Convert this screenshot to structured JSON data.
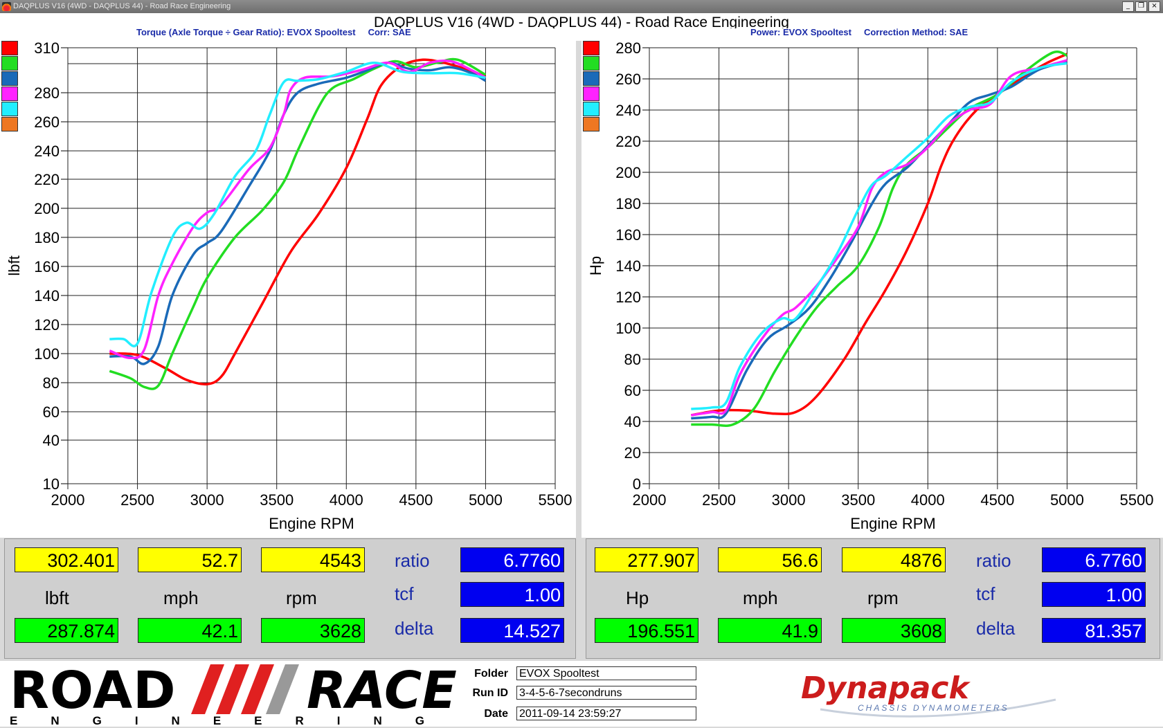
{
  "window": {
    "title": "DAQPLUS V16 (4WD - DAQPLUS 44) - Road Race Engineering",
    "minimize": "_",
    "restore": "❐",
    "close": "×"
  },
  "header": {
    "title": "DAQPLUS V16 (4WD - DAQPLUS 44) - Road Race Engineering",
    "torque_sub": "Torque (Axle Torque ÷ Gear Ratio): EVOX Spooltest     Corr: SAE",
    "power_sub": "Power: EVOX Spooltest     Correction Method: SAE"
  },
  "colors": {
    "run1": "#ff0000",
    "run2": "#22dd22",
    "run3": "#1a6ab8",
    "run4": "#ff22ff",
    "run5": "#22eeff",
    "run6": "#ee7722"
  },
  "chart_data": [
    {
      "type": "line",
      "title": "",
      "xlabel": "Engine RPM",
      "ylabel": "lbft",
      "xlim": [
        2000,
        5500
      ],
      "xticks": [
        2000,
        2500,
        3000,
        3500,
        4000,
        4500,
        5000,
        5500
      ],
      "yticks": [
        10,
        40,
        60,
        80,
        100,
        120,
        140,
        160,
        180,
        200,
        220,
        240,
        260,
        280,
        310
      ],
      "series": [
        {
          "color": "#ff0000",
          "points": [
            [
              2300,
              100
            ],
            [
              2500,
              99
            ],
            [
              2700,
              90
            ],
            [
              2850,
              82
            ],
            [
              3000,
              79
            ],
            [
              3100,
              84
            ],
            [
              3200,
              100
            ],
            [
              3400,
              135
            ],
            [
              3600,
              170
            ],
            [
              3800,
              196
            ],
            [
              4000,
              228
            ],
            [
              4150,
              262
            ],
            [
              4250,
              285
            ],
            [
              4400,
              298
            ],
            [
              4550,
              302
            ],
            [
              4700,
              300
            ],
            [
              4850,
              296
            ],
            [
              5000,
              291
            ]
          ]
        },
        {
          "color": "#22dd22",
          "points": [
            [
              2300,
              88
            ],
            [
              2450,
              83
            ],
            [
              2550,
              77
            ],
            [
              2650,
              78
            ],
            [
              2750,
              100
            ],
            [
              2900,
              132
            ],
            [
              3000,
              152
            ],
            [
              3200,
              180
            ],
            [
              3400,
              199
            ],
            [
              3550,
              218
            ],
            [
              3650,
              240
            ],
            [
              3800,
              270
            ],
            [
              3900,
              283
            ],
            [
              4050,
              289
            ],
            [
              4200,
              296
            ],
            [
              4350,
              301
            ],
            [
              4500,
              297
            ],
            [
              4650,
              300
            ],
            [
              4800,
              302
            ],
            [
              5000,
              292
            ]
          ]
        },
        {
          "color": "#1a6ab8",
          "points": [
            [
              2300,
              98
            ],
            [
              2450,
              98
            ],
            [
              2550,
              93
            ],
            [
              2650,
              105
            ],
            [
              2750,
              140
            ],
            [
              2900,
              168
            ],
            [
              3000,
              176
            ],
            [
              3100,
              184
            ],
            [
              3300,
              215
            ],
            [
              3450,
              240
            ],
            [
              3550,
              265
            ],
            [
              3650,
              280
            ],
            [
              3800,
              286
            ],
            [
              4000,
              290
            ],
            [
              4150,
              295
            ],
            [
              4300,
              300
            ],
            [
              4450,
              296
            ],
            [
              4600,
              295
            ],
            [
              4750,
              297
            ],
            [
              4900,
              293
            ],
            [
              5000,
              288
            ]
          ]
        },
        {
          "color": "#ff22ff",
          "points": [
            [
              2300,
              102
            ],
            [
              2450,
              97
            ],
            [
              2550,
              103
            ],
            [
              2650,
              140
            ],
            [
              2750,
              162
            ],
            [
              2900,
              187
            ],
            [
              3000,
              197
            ],
            [
              3100,
              202
            ],
            [
              3300,
              227
            ],
            [
              3450,
              242
            ],
            [
              3550,
              265
            ],
            [
              3600,
              282
            ],
            [
              3700,
              290
            ],
            [
              3900,
              291
            ],
            [
              4100,
              295
            ],
            [
              4300,
              300
            ],
            [
              4450,
              294
            ],
            [
              4600,
              300
            ],
            [
              4750,
              301
            ],
            [
              4900,
              295
            ],
            [
              5000,
              290
            ]
          ]
        },
        {
          "color": "#22eeff",
          "points": [
            [
              2300,
              110
            ],
            [
              2400,
              110
            ],
            [
              2500,
              107
            ],
            [
              2600,
              142
            ],
            [
              2750,
              180
            ],
            [
              2850,
              190
            ],
            [
              2950,
              186
            ],
            [
              3050,
              196
            ],
            [
              3200,
              222
            ],
            [
              3350,
              240
            ],
            [
              3450,
              265
            ],
            [
              3550,
              287
            ],
            [
              3650,
              288
            ],
            [
              3800,
              289
            ],
            [
              4000,
              294
            ],
            [
              4200,
              300
            ],
            [
              4400,
              294
            ],
            [
              4600,
              293
            ],
            [
              4800,
              293
            ],
            [
              5000,
              290
            ]
          ]
        }
      ]
    },
    {
      "type": "line",
      "title": "",
      "xlabel": "Engine RPM",
      "ylabel": "Hp",
      "xlim": [
        2000,
        5500
      ],
      "ylim": [
        0,
        280
      ],
      "xticks": [
        2000,
        2500,
        3000,
        3500,
        4000,
        4500,
        5000,
        5500
      ],
      "yticks": [
        0,
        20,
        40,
        60,
        80,
        100,
        120,
        140,
        160,
        180,
        200,
        220,
        240,
        260,
        280
      ],
      "series": [
        {
          "color": "#ff0000",
          "points": [
            [
              2300,
              44
            ],
            [
              2500,
              47
            ],
            [
              2700,
              47
            ],
            [
              2900,
              45
            ],
            [
              3050,
              46
            ],
            [
              3200,
              56
            ],
            [
              3400,
              80
            ],
            [
              3550,
              103
            ],
            [
              3700,
              125
            ],
            [
              3850,
              150
            ],
            [
              4000,
              180
            ],
            [
              4100,
              205
            ],
            [
              4200,
              223
            ],
            [
              4350,
              240
            ],
            [
              4500,
              250
            ],
            [
              4700,
              262
            ],
            [
              4850,
              270
            ],
            [
              5000,
              276
            ]
          ]
        },
        {
          "color": "#22dd22",
          "points": [
            [
              2300,
              38
            ],
            [
              2450,
              38
            ],
            [
              2600,
              38
            ],
            [
              2750,
              48
            ],
            [
              2900,
              72
            ],
            [
              3050,
              94
            ],
            [
              3200,
              113
            ],
            [
              3350,
              127
            ],
            [
              3500,
              140
            ],
            [
              3650,
              165
            ],
            [
              3750,
              190
            ],
            [
              3850,
              205
            ],
            [
              4000,
              216
            ],
            [
              4150,
              229
            ],
            [
              4300,
              241
            ],
            [
              4500,
              250
            ],
            [
              4700,
              265
            ],
            [
              4900,
              277
            ],
            [
              5000,
              275
            ]
          ]
        },
        {
          "color": "#1a6ab8",
          "points": [
            [
              2300,
              42
            ],
            [
              2450,
              43
            ],
            [
              2550,
              45
            ],
            [
              2700,
              73
            ],
            [
              2850,
              93
            ],
            [
              3000,
              102
            ],
            [
              3150,
              113
            ],
            [
              3300,
              132
            ],
            [
              3450,
              155
            ],
            [
              3600,
              180
            ],
            [
              3700,
              193
            ],
            [
              3850,
              203
            ],
            [
              4000,
              217
            ],
            [
              4150,
              231
            ],
            [
              4300,
              245
            ],
            [
              4450,
              250
            ],
            [
              4600,
              255
            ],
            [
              4800,
              266
            ],
            [
              5000,
              271
            ]
          ]
        },
        {
          "color": "#ff22ff",
          "points": [
            [
              2300,
              44
            ],
            [
              2450,
              46
            ],
            [
              2550,
              47
            ],
            [
              2650,
              70
            ],
            [
              2800,
              92
            ],
            [
              2950,
              108
            ],
            [
              3050,
              113
            ],
            [
              3200,
              127
            ],
            [
              3350,
              145
            ],
            [
              3500,
              165
            ],
            [
              3600,
              190
            ],
            [
              3700,
              200
            ],
            [
              3850,
              205
            ],
            [
              4000,
              216
            ],
            [
              4150,
              231
            ],
            [
              4300,
              240
            ],
            [
              4450,
              244
            ],
            [
              4600,
              262
            ],
            [
              4800,
              267
            ],
            [
              5000,
              272
            ]
          ]
        },
        {
          "color": "#22eeff",
          "points": [
            [
              2300,
              48
            ],
            [
              2450,
              49
            ],
            [
              2550,
              52
            ],
            [
              2650,
              75
            ],
            [
              2800,
              96
            ],
            [
              2950,
              106
            ],
            [
              3050,
              106
            ],
            [
              3200,
              126
            ],
            [
              3350,
              148
            ],
            [
              3500,
              176
            ],
            [
              3600,
              192
            ],
            [
              3700,
              198
            ],
            [
              3850,
              210
            ],
            [
              4000,
              222
            ],
            [
              4150,
              236
            ],
            [
              4300,
              242
            ],
            [
              4450,
              245
            ],
            [
              4600,
              258
            ],
            [
              4800,
              267
            ],
            [
              5000,
              270
            ]
          ]
        }
      ]
    }
  ],
  "torque_panel": {
    "top": [
      "302.401",
      "52.7",
      "4543"
    ],
    "units": [
      "lbft",
      "mph",
      "rpm"
    ],
    "bottom": [
      "287.874",
      "42.1",
      "3628"
    ],
    "labels": [
      "ratio",
      "tcf",
      "delta"
    ],
    "values": [
      "6.7760",
      "1.00",
      "14.527"
    ]
  },
  "power_panel": {
    "top": [
      "277.907",
      "56.6",
      "4876"
    ],
    "units": [
      "Hp",
      "mph",
      "rpm"
    ],
    "bottom": [
      "196.551",
      "41.9",
      "3608"
    ],
    "labels": [
      "ratio",
      "tcf",
      "delta"
    ],
    "values": [
      "6.7760",
      "1.00",
      "81.357"
    ]
  },
  "footer": {
    "road": "ROAD",
    "race": "RACE",
    "engineering": "ENGINEERING",
    "folder_label": "Folder",
    "folder": "EVOX Spooltest",
    "runid_label": "Run ID",
    "runid": "3-4-5-6-7secondruns",
    "date_label": "Date",
    "date": "2011-09-14 23:59:27",
    "dynapack": "Dynapack",
    "dynapack_sub": "CHASSIS DYNAMOMETERS"
  }
}
